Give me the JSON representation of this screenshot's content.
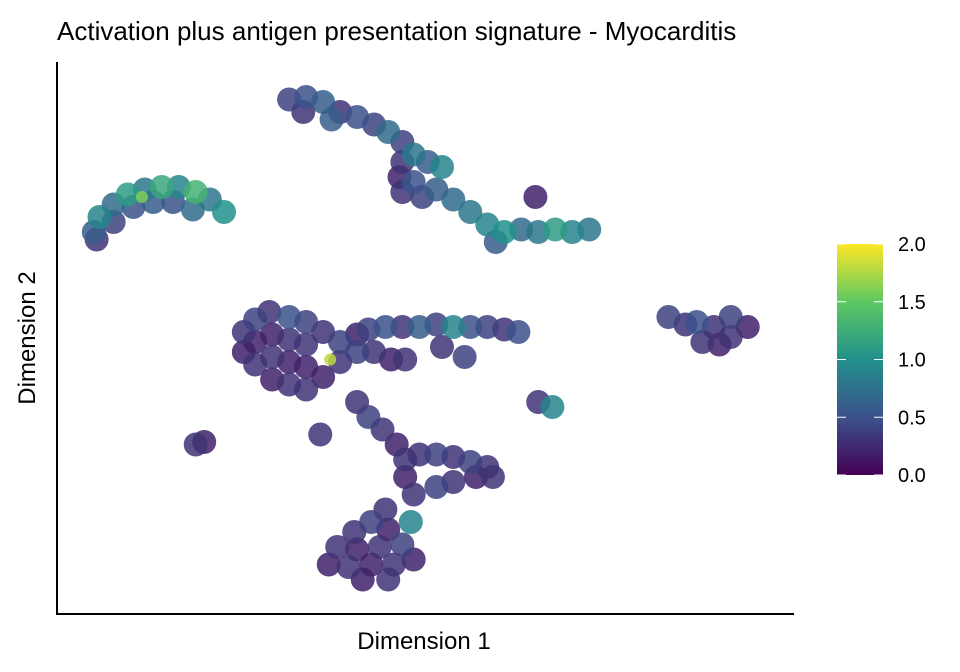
{
  "chart_data": {
    "type": "scatter",
    "title": "Activation plus antigen presentation signature - Myocarditis",
    "xlabel": "Dimension 1",
    "ylabel": "Dimension 2",
    "xlim": [
      -12,
      14
    ],
    "ylim": [
      -12,
      10
    ],
    "grid": false,
    "legend": {
      "placement": "right",
      "type": "colorbar",
      "colormap": "viridis",
      "range": [
        0,
        2
      ],
      "ticks": [
        "0.0",
        "0.5",
        "1.0",
        "1.5",
        "2.0"
      ]
    },
    "points": [
      [
        -10.7,
        3.2,
        0.6
      ],
      [
        -10.5,
        3.8,
        0.9
      ],
      [
        -10.0,
        4.3,
        0.7
      ],
      [
        -9.5,
        4.7,
        1.1
      ],
      [
        -8.9,
        4.9,
        0.8
      ],
      [
        -8.3,
        5.0,
        1.2
      ],
      [
        -7.7,
        5.0,
        0.9
      ],
      [
        -7.1,
        4.8,
        1.3
      ],
      [
        -6.6,
        4.5,
        0.8
      ],
      [
        -6.1,
        4.0,
        1.0
      ],
      [
        -10.0,
        3.6,
        0.4
      ],
      [
        -9.3,
        4.2,
        0.5
      ],
      [
        -8.6,
        4.4,
        0.6
      ],
      [
        -7.9,
        4.4,
        0.5
      ],
      [
        -7.2,
        4.1,
        0.7
      ],
      [
        -10.6,
        2.9,
        0.3
      ],
      [
        -9.0,
        4.6,
        1.6
      ],
      [
        -3.8,
        8.5,
        0.4
      ],
      [
        -3.2,
        8.6,
        0.5
      ],
      [
        -2.6,
        8.4,
        0.6
      ],
      [
        -2.0,
        8.0,
        0.3
      ],
      [
        -1.4,
        7.8,
        0.5
      ],
      [
        -0.8,
        7.5,
        0.4
      ],
      [
        -0.3,
        7.2,
        0.7
      ],
      [
        0.2,
        6.8,
        0.4
      ],
      [
        0.6,
        6.3,
        0.8
      ],
      [
        1.1,
        6.0,
        0.6
      ],
      [
        1.6,
        5.8,
        0.9
      ],
      [
        0.2,
        6.0,
        0.3
      ],
      [
        0.1,
        5.4,
        0.2
      ],
      [
        0.2,
        4.8,
        0.3
      ],
      [
        0.6,
        5.2,
        0.5
      ],
      [
        0.9,
        4.6,
        0.4
      ],
      [
        1.4,
        4.9,
        0.6
      ],
      [
        2.0,
        4.5,
        0.7
      ],
      [
        2.6,
        4.0,
        0.8
      ],
      [
        3.2,
        3.5,
        0.9
      ],
      [
        3.8,
        3.2,
        1.0
      ],
      [
        4.4,
        3.3,
        0.7
      ],
      [
        5.0,
        3.2,
        0.8
      ],
      [
        5.6,
        3.3,
        1.1
      ],
      [
        6.2,
        3.2,
        0.9
      ],
      [
        6.8,
        3.3,
        0.8
      ],
      [
        3.5,
        2.8,
        0.6
      ],
      [
        -3.3,
        8.0,
        0.3
      ],
      [
        -2.3,
        7.7,
        0.6
      ],
      [
        4.9,
        4.6,
        0.2
      ],
      [
        -5.4,
        -0.8,
        0.3
      ],
      [
        -5.4,
        -1.6,
        0.2
      ],
      [
        -5.0,
        -0.3,
        0.4
      ],
      [
        -5.0,
        -1.2,
        0.2
      ],
      [
        -5.0,
        -2.1,
        0.3
      ],
      [
        -4.5,
        0.0,
        0.3
      ],
      [
        -4.4,
        -0.9,
        0.2
      ],
      [
        -4.4,
        -1.8,
        0.3
      ],
      [
        -4.4,
        -2.7,
        0.2
      ],
      [
        -3.8,
        -0.2,
        0.5
      ],
      [
        -3.8,
        -1.1,
        0.3
      ],
      [
        -3.8,
        -2.0,
        0.2
      ],
      [
        -3.8,
        -2.9,
        0.3
      ],
      [
        -3.2,
        -0.4,
        0.4
      ],
      [
        -3.2,
        -1.3,
        0.3
      ],
      [
        -3.2,
        -2.2,
        0.2
      ],
      [
        -3.2,
        -3.1,
        0.3
      ],
      [
        -2.6,
        -0.8,
        0.3
      ],
      [
        -2.6,
        -2.6,
        0.2
      ],
      [
        -2.0,
        -1.2,
        0.4
      ],
      [
        -2.0,
        -2.0,
        0.3
      ],
      [
        -1.4,
        -1.6,
        0.4
      ],
      [
        -1.4,
        -0.9,
        0.2
      ],
      [
        -2.35,
        -1.9,
        1.8
      ],
      [
        -1.0,
        -0.7,
        0.4
      ],
      [
        -0.4,
        -0.6,
        0.5
      ],
      [
        0.2,
        -0.6,
        0.3
      ],
      [
        0.8,
        -0.6,
        0.6
      ],
      [
        1.4,
        -0.5,
        0.4
      ],
      [
        2.0,
        -0.6,
        0.9
      ],
      [
        2.6,
        -0.6,
        0.5
      ],
      [
        3.2,
        -0.6,
        0.4
      ],
      [
        3.8,
        -0.7,
        0.3
      ],
      [
        4.3,
        -0.8,
        0.5
      ],
      [
        -0.8,
        -1.6,
        0.3
      ],
      [
        -0.2,
        -1.9,
        0.2
      ],
      [
        0.3,
        -1.9,
        0.3
      ],
      [
        1.6,
        -1.4,
        0.3
      ],
      [
        2.4,
        -1.8,
        0.4
      ],
      [
        9.6,
        -0.2,
        0.4
      ],
      [
        10.2,
        -0.5,
        0.3
      ],
      [
        10.8,
        -1.2,
        0.3
      ],
      [
        11.2,
        -0.6,
        0.3
      ],
      [
        11.8,
        -0.2,
        0.4
      ],
      [
        11.8,
        -1.0,
        0.3
      ],
      [
        12.4,
        -0.6,
        0.2
      ],
      [
        11.4,
        -1.3,
        0.2
      ],
      [
        10.6,
        -0.4,
        0.5
      ],
      [
        5.0,
        -3.6,
        0.3
      ],
      [
        5.5,
        -3.8,
        0.9
      ],
      [
        -7.1,
        -5.3,
        0.3
      ],
      [
        -6.8,
        -5.2,
        0.2
      ],
      [
        -1.4,
        -3.6,
        0.3
      ],
      [
        -1.0,
        -4.2,
        0.4
      ],
      [
        -0.5,
        -4.7,
        0.3
      ],
      [
        0.0,
        -5.3,
        0.2
      ],
      [
        0.3,
        -5.9,
        0.3
      ],
      [
        -2.7,
        -4.9,
        0.3
      ],
      [
        0.8,
        -5.7,
        0.3
      ],
      [
        1.4,
        -5.7,
        0.4
      ],
      [
        2.0,
        -5.8,
        0.3
      ],
      [
        2.6,
        -6.0,
        0.4
      ],
      [
        3.2,
        -6.2,
        0.3
      ],
      [
        2.8,
        -6.6,
        0.2
      ],
      [
        3.4,
        -6.6,
        0.3
      ],
      [
        2.0,
        -6.8,
        0.3
      ],
      [
        1.4,
        -7.0,
        0.4
      ],
      [
        0.6,
        -7.3,
        0.3
      ],
      [
        0.3,
        -6.6,
        0.2
      ],
      [
        -0.4,
        -7.9,
        0.3
      ],
      [
        -0.9,
        -8.4,
        0.4
      ],
      [
        -1.5,
        -8.8,
        0.3
      ],
      [
        -0.3,
        -8.7,
        0.2
      ],
      [
        -2.1,
        -9.4,
        0.3
      ],
      [
        -1.4,
        -9.5,
        0.2
      ],
      [
        -0.6,
        -9.4,
        0.3
      ],
      [
        0.2,
        -9.3,
        0.4
      ],
      [
        -2.4,
        -10.1,
        0.2
      ],
      [
        -1.7,
        -10.2,
        0.3
      ],
      [
        -0.9,
        -10.1,
        0.2
      ],
      [
        -0.1,
        -10.1,
        0.3
      ],
      [
        0.6,
        -9.9,
        0.2
      ],
      [
        -1.2,
        -10.7,
        0.2
      ],
      [
        -0.3,
        -10.7,
        0.3
      ],
      [
        0.5,
        -8.4,
        0.9
      ]
    ]
  }
}
